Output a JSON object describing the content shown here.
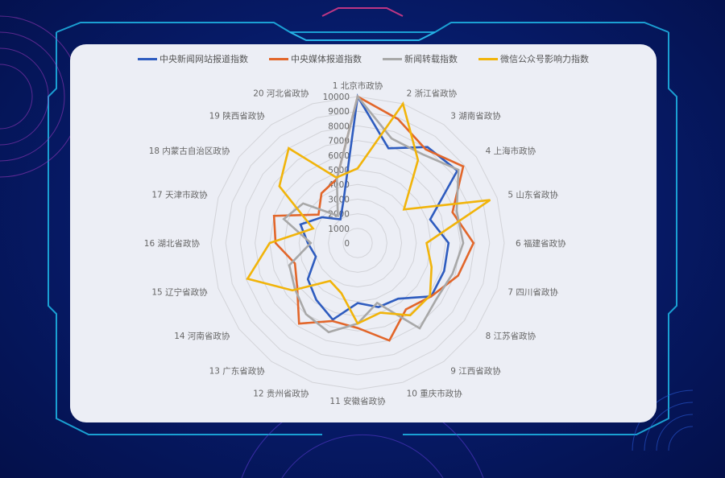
{
  "chart_data": {
    "type": "radar",
    "title": "",
    "categories": [
      "1 北京市政协",
      "2 浙江省政协",
      "3 湖南省政协",
      "4 上海市政协",
      "5 山东省政协",
      "6 福建省政协",
      "7 四川省政协",
      "8 江苏省政协",
      "9 江西省政协",
      "10 重庆市政协",
      "11 安徽省政协",
      "12 贵州省政协",
      "13 广东省政协",
      "14 河南省政协",
      "15 辽宁省政协",
      "16 湖北省政协",
      "17 天津市政协",
      "18 内蒙古自治区政协",
      "19 陕西省政协",
      "20 河北省政协"
    ],
    "rlim": [
      0,
      10000
    ],
    "ticks": [
      "0",
      "1000",
      "2000",
      "3000",
      "4000",
      "5000",
      "6000",
      "7000",
      "8000",
      "9000",
      "10000"
    ],
    "legend_position": "top",
    "grid": true,
    "series": [
      {
        "name": "中央新闻网站报道指数",
        "color": "#2e5cbf",
        "values": [
          10000,
          6800,
          8100,
          8400,
          5200,
          6200,
          6200,
          6200,
          4700,
          4600,
          4100,
          5500,
          4800,
          4200,
          3000,
          3400,
          4100,
          3000,
          2000,
          3100
        ]
      },
      {
        "name": "中央媒体报道指数",
        "color": "#e2662a",
        "values": [
          10000,
          8900,
          7900,
          8900,
          6800,
          7900,
          7200,
          6200,
          5600,
          7000,
          5800,
          5600,
          6800,
          5100,
          4500,
          5600,
          6000,
          3300,
          4200,
          4600
        ]
      },
      {
        "name": "新闻转载指数",
        "color": "#a8a8a8",
        "values": [
          10000,
          7500,
          7500,
          8500,
          7100,
          7200,
          6800,
          6600,
          7200,
          4300,
          5500,
          6400,
          6000,
          5300,
          4900,
          3200,
          5300,
          4600,
          2300,
          4600
        ]
      },
      {
        "name": "微信公众号影响力指数",
        "color": "#f1b40a",
        "values": [
          5100,
          10000,
          7000,
          3900,
          9500,
          4700,
          5300,
          6100,
          6100,
          5000,
          5500,
          3600,
          3200,
          5500,
          7900,
          6000,
          3200,
          6600,
          8000,
          4700
        ]
      }
    ]
  }
}
